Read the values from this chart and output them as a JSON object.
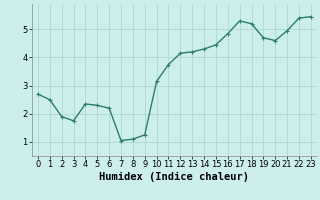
{
  "x": [
    0,
    1,
    2,
    3,
    4,
    5,
    6,
    7,
    8,
    9,
    10,
    11,
    12,
    13,
    14,
    15,
    16,
    17,
    18,
    19,
    20,
    21,
    22,
    23
  ],
  "y": [
    2.7,
    2.5,
    1.9,
    1.75,
    2.35,
    2.3,
    2.2,
    1.05,
    1.1,
    1.25,
    3.15,
    3.75,
    4.15,
    4.2,
    4.3,
    4.45,
    4.85,
    5.3,
    5.2,
    4.7,
    4.6,
    4.95,
    5.4,
    5.45
  ],
  "xlabel": "Humidex (Indice chaleur)",
  "line_color": "#2d7d6e",
  "marker": "+",
  "marker_size": 3,
  "bg_color": "#cceeed",
  "grid_color": "#aad4d0",
  "xlim": [
    -0.5,
    23.5
  ],
  "ylim": [
    0.5,
    5.9
  ],
  "yticks": [
    1,
    2,
    3,
    4,
    5
  ],
  "xticks": [
    0,
    1,
    2,
    3,
    4,
    5,
    6,
    7,
    8,
    9,
    10,
    11,
    12,
    13,
    14,
    15,
    16,
    17,
    18,
    19,
    20,
    21,
    22,
    23
  ],
  "xlabel_fontsize": 7.5,
  "tick_fontsize": 6,
  "linewidth": 1.0,
  "spine_color": "#888888"
}
